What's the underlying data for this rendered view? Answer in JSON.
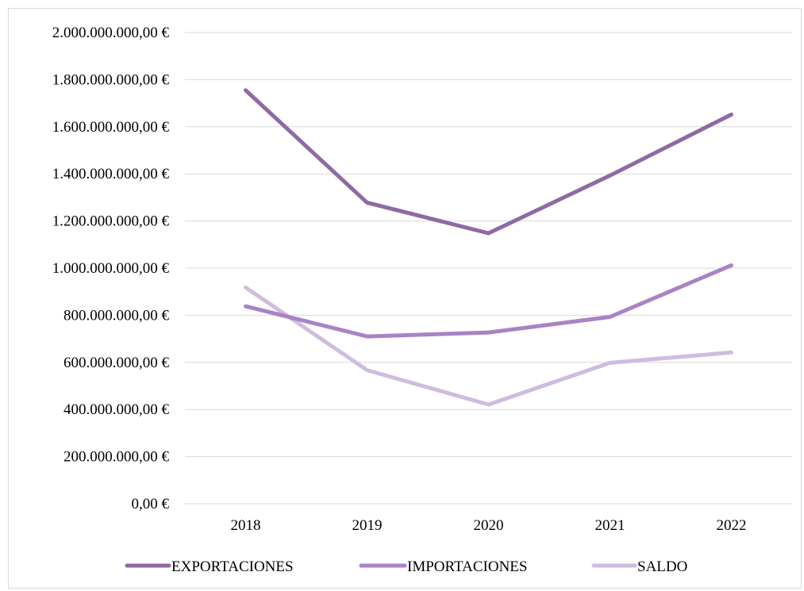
{
  "chart_data": {
    "type": "line",
    "categories": [
      "2018",
      "2019",
      "2020",
      "2021",
      "2022"
    ],
    "series": [
      {
        "name": "EXPORTACIONES",
        "color": "#8e6aa3",
        "values": [
          1755000000,
          1278000000,
          1148000000,
          1393000000,
          1652000000
        ]
      },
      {
        "name": "IMPORTACIONES",
        "color": "#a983c4",
        "values": [
          838000000,
          710000000,
          727000000,
          793000000,
          1012000000
        ]
      },
      {
        "name": "SALDO",
        "color": "#cfbcde",
        "values": [
          918000000,
          567000000,
          421000000,
          598000000,
          642000000
        ]
      }
    ],
    "y_ticks": [
      "0,00 €",
      "200.000.000,00 €",
      "400.000.000,00 €",
      "600.000.000,00 €",
      "800.000.000,00 €",
      "1.000.000.000,00 €",
      "1.200.000.000,00 €",
      "1.400.000.000,00 €",
      "1.600.000.000,00 €",
      "1.800.000.000,00 €",
      "2.000.000.000,00 €"
    ],
    "ylim": [
      0,
      2000000000
    ],
    "grid": true,
    "legend": "bottom"
  }
}
